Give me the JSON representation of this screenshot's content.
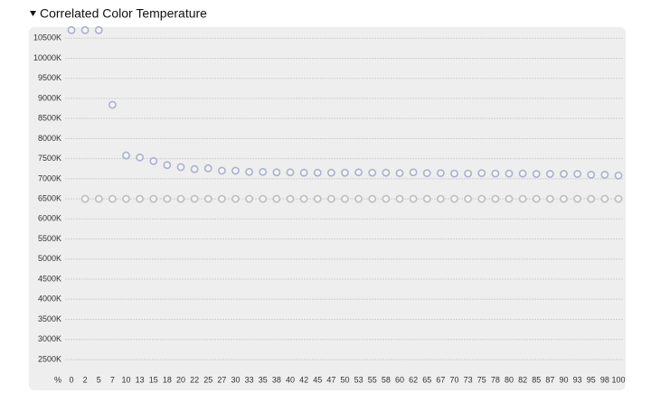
{
  "chart_data": {
    "type": "scatter",
    "title": "Correlated Color Temperature",
    "x_label": "%",
    "categories": [
      "0",
      "2",
      "5",
      "7",
      "10",
      "13",
      "15",
      "18",
      "20",
      "22",
      "25",
      "27",
      "30",
      "33",
      "35",
      "38",
      "40",
      "42",
      "45",
      "47",
      "50",
      "53",
      "55",
      "58",
      "60",
      "62",
      "65",
      "67",
      "70",
      "73",
      "75",
      "78",
      "80",
      "82",
      "85",
      "87",
      "90",
      "93",
      "95",
      "98",
      "100"
    ],
    "series": [
      {
        "color": "#a9b1cd",
        "values": [
          10700,
          10700,
          10700,
          8840,
          7580,
          7530,
          7440,
          7340,
          7290,
          7240,
          7260,
          7200,
          7200,
          7170,
          7170,
          7160,
          7160,
          7150,
          7150,
          7150,
          7150,
          7160,
          7150,
          7150,
          7140,
          7160,
          7140,
          7140,
          7130,
          7130,
          7140,
          7130,
          7130,
          7130,
          7120,
          7120,
          7120,
          7120,
          7100,
          7100,
          7080
        ]
      },
      {
        "color": "#bdbdbd",
        "values": [
          null,
          6500,
          6500,
          6500,
          6500,
          6500,
          6500,
          6500,
          6500,
          6500,
          6500,
          6500,
          6500,
          6500,
          6500,
          6500,
          6500,
          6500,
          6500,
          6500,
          6500,
          6500,
          6500,
          6500,
          6500,
          6500,
          6500,
          6500,
          6500,
          6500,
          6500,
          6500,
          6500,
          6500,
          6500,
          6500,
          6500,
          6500,
          6500,
          6500,
          6500
        ]
      }
    ],
    "ylim": [
      2230,
      10730
    ],
    "yticks": [
      {
        "value": 2500,
        "label": "2500K"
      },
      {
        "value": 3000,
        "label": "3000K"
      },
      {
        "value": 3500,
        "label": "3500K"
      },
      {
        "value": 4000,
        "label": "4000K"
      },
      {
        "value": 4500,
        "label": "4500K"
      },
      {
        "value": 5000,
        "label": "5000K"
      },
      {
        "value": 5500,
        "label": "5500K"
      },
      {
        "value": 6000,
        "label": "6000K"
      },
      {
        "value": 6500,
        "label": "6500K"
      },
      {
        "value": 7000,
        "label": "7000K"
      },
      {
        "value": 7500,
        "label": "7500K"
      },
      {
        "value": 8000,
        "label": "8000K"
      },
      {
        "value": 8500,
        "label": "8500K"
      },
      {
        "value": 9000,
        "label": "9000K"
      },
      {
        "value": 9500,
        "label": "9500K"
      },
      {
        "value": 10000,
        "label": "10000K"
      },
      {
        "value": 10500,
        "label": "10500K"
      }
    ],
    "grid": true
  }
}
